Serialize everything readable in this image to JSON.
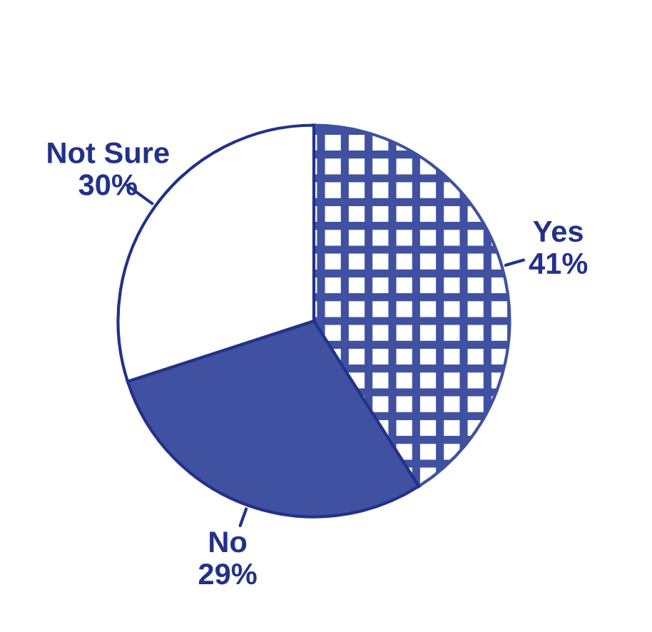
{
  "chart_data": {
    "type": "pie",
    "categories": [
      "Yes",
      "No",
      "Not Sure"
    ],
    "values": [
      41,
      29,
      30
    ],
    "colors": [
      "#3f51a0",
      "#3f51a0",
      "#ffffff"
    ],
    "value_labels": [
      "41%",
      "29%",
      "30%"
    ]
  }
}
